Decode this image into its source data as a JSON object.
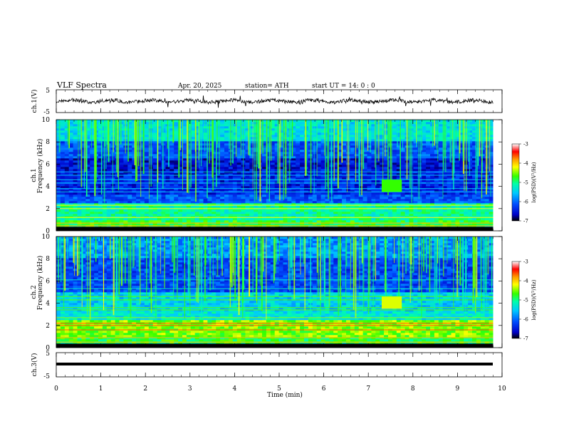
{
  "header": {
    "title": "VLF  Spectra",
    "date": "Apr. 20, 2025",
    "station": "station= ATH",
    "start": "start  UT  =   14: 0  : 0"
  },
  "chart_data": {
    "type": "heatmap",
    "x": {
      "label": "Time  (min)",
      "range": [
        0,
        10
      ],
      "ticks": [
        "0",
        "1",
        "2",
        "3",
        "4",
        "5",
        "6",
        "7",
        "8",
        "9",
        "10"
      ],
      "data_end": 9.8
    },
    "waveform_panels": [
      {
        "label": "ch.1(V)",
        "range": [
          -5,
          5
        ],
        "ticks": [
          "5",
          "-5"
        ]
      },
      {
        "label": "ch.3(V)",
        "range": [
          -5,
          5
        ],
        "ticks": [
          "5",
          "-5"
        ]
      }
    ],
    "spectrogram_panels": [
      {
        "label_top": "ch.1",
        "label_bottom": "Frequency  (kHz)",
        "yrange": [
          0,
          10
        ],
        "yticks": [
          "0",
          "2",
          "4",
          "6",
          "8",
          "10"
        ]
      },
      {
        "label_top": "ch.2",
        "label_bottom": "Frequency  (kHz)",
        "yrange": [
          0,
          10
        ],
        "yticks": [
          "0",
          "2",
          "4",
          "6",
          "8",
          "10"
        ]
      }
    ],
    "colorbar": {
      "label": "log(PSD)(V²/Hz)",
      "range": [
        -7,
        -3
      ],
      "ticks": [
        "-3",
        "-4",
        "-5",
        "-6",
        "-7"
      ],
      "colors": [
        "#000000",
        "#0000c8",
        "#0050ff",
        "#00c8ff",
        "#00ffaa",
        "#33ff00",
        "#ffff00",
        "#ff9900",
        "#ff0000",
        "#ffffff"
      ]
    }
  }
}
